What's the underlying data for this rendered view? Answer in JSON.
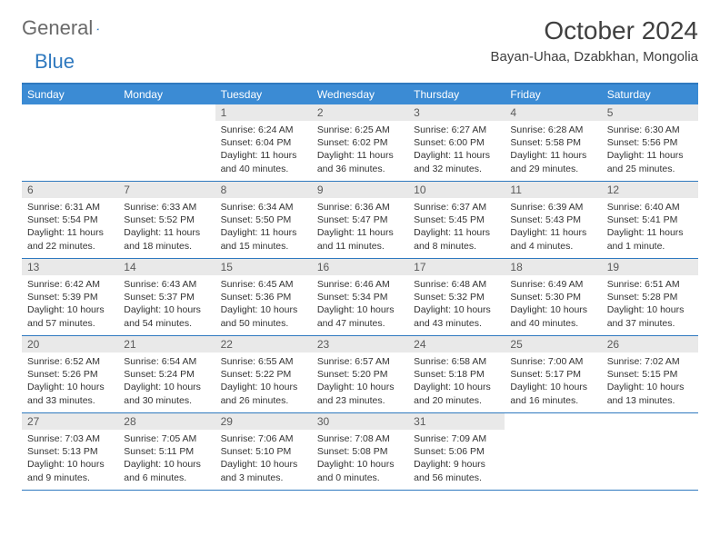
{
  "brand": {
    "word1": "General",
    "word2": "Blue",
    "accent_color": "#2f79bf"
  },
  "title": "October 2024",
  "location": "Bayan-Uhaa, Dzabkhan, Mongolia",
  "day_labels": [
    "Sunday",
    "Monday",
    "Tuesday",
    "Wednesday",
    "Thursday",
    "Friday",
    "Saturday"
  ],
  "colors": {
    "header_bg": "#3b8bd4",
    "header_text": "#ffffff",
    "daynum_bg": "#e9e9e9",
    "border": "#2f79bf",
    "text": "#333333"
  },
  "weeks": [
    [
      {
        "blank": true
      },
      {
        "blank": true
      },
      {
        "day": "1",
        "sunrise": "Sunrise: 6:24 AM",
        "sunset": "Sunset: 6:04 PM",
        "daylight": "Daylight: 11 hours and 40 minutes."
      },
      {
        "day": "2",
        "sunrise": "Sunrise: 6:25 AM",
        "sunset": "Sunset: 6:02 PM",
        "daylight": "Daylight: 11 hours and 36 minutes."
      },
      {
        "day": "3",
        "sunrise": "Sunrise: 6:27 AM",
        "sunset": "Sunset: 6:00 PM",
        "daylight": "Daylight: 11 hours and 32 minutes."
      },
      {
        "day": "4",
        "sunrise": "Sunrise: 6:28 AM",
        "sunset": "Sunset: 5:58 PM",
        "daylight": "Daylight: 11 hours and 29 minutes."
      },
      {
        "day": "5",
        "sunrise": "Sunrise: 6:30 AM",
        "sunset": "Sunset: 5:56 PM",
        "daylight": "Daylight: 11 hours and 25 minutes."
      }
    ],
    [
      {
        "day": "6",
        "sunrise": "Sunrise: 6:31 AM",
        "sunset": "Sunset: 5:54 PM",
        "daylight": "Daylight: 11 hours and 22 minutes."
      },
      {
        "day": "7",
        "sunrise": "Sunrise: 6:33 AM",
        "sunset": "Sunset: 5:52 PM",
        "daylight": "Daylight: 11 hours and 18 minutes."
      },
      {
        "day": "8",
        "sunrise": "Sunrise: 6:34 AM",
        "sunset": "Sunset: 5:50 PM",
        "daylight": "Daylight: 11 hours and 15 minutes."
      },
      {
        "day": "9",
        "sunrise": "Sunrise: 6:36 AM",
        "sunset": "Sunset: 5:47 PM",
        "daylight": "Daylight: 11 hours and 11 minutes."
      },
      {
        "day": "10",
        "sunrise": "Sunrise: 6:37 AM",
        "sunset": "Sunset: 5:45 PM",
        "daylight": "Daylight: 11 hours and 8 minutes."
      },
      {
        "day": "11",
        "sunrise": "Sunrise: 6:39 AM",
        "sunset": "Sunset: 5:43 PM",
        "daylight": "Daylight: 11 hours and 4 minutes."
      },
      {
        "day": "12",
        "sunrise": "Sunrise: 6:40 AM",
        "sunset": "Sunset: 5:41 PM",
        "daylight": "Daylight: 11 hours and 1 minute."
      }
    ],
    [
      {
        "day": "13",
        "sunrise": "Sunrise: 6:42 AM",
        "sunset": "Sunset: 5:39 PM",
        "daylight": "Daylight: 10 hours and 57 minutes."
      },
      {
        "day": "14",
        "sunrise": "Sunrise: 6:43 AM",
        "sunset": "Sunset: 5:37 PM",
        "daylight": "Daylight: 10 hours and 54 minutes."
      },
      {
        "day": "15",
        "sunrise": "Sunrise: 6:45 AM",
        "sunset": "Sunset: 5:36 PM",
        "daylight": "Daylight: 10 hours and 50 minutes."
      },
      {
        "day": "16",
        "sunrise": "Sunrise: 6:46 AM",
        "sunset": "Sunset: 5:34 PM",
        "daylight": "Daylight: 10 hours and 47 minutes."
      },
      {
        "day": "17",
        "sunrise": "Sunrise: 6:48 AM",
        "sunset": "Sunset: 5:32 PM",
        "daylight": "Daylight: 10 hours and 43 minutes."
      },
      {
        "day": "18",
        "sunrise": "Sunrise: 6:49 AM",
        "sunset": "Sunset: 5:30 PM",
        "daylight": "Daylight: 10 hours and 40 minutes."
      },
      {
        "day": "19",
        "sunrise": "Sunrise: 6:51 AM",
        "sunset": "Sunset: 5:28 PM",
        "daylight": "Daylight: 10 hours and 37 minutes."
      }
    ],
    [
      {
        "day": "20",
        "sunrise": "Sunrise: 6:52 AM",
        "sunset": "Sunset: 5:26 PM",
        "daylight": "Daylight: 10 hours and 33 minutes."
      },
      {
        "day": "21",
        "sunrise": "Sunrise: 6:54 AM",
        "sunset": "Sunset: 5:24 PM",
        "daylight": "Daylight: 10 hours and 30 minutes."
      },
      {
        "day": "22",
        "sunrise": "Sunrise: 6:55 AM",
        "sunset": "Sunset: 5:22 PM",
        "daylight": "Daylight: 10 hours and 26 minutes."
      },
      {
        "day": "23",
        "sunrise": "Sunrise: 6:57 AM",
        "sunset": "Sunset: 5:20 PM",
        "daylight": "Daylight: 10 hours and 23 minutes."
      },
      {
        "day": "24",
        "sunrise": "Sunrise: 6:58 AM",
        "sunset": "Sunset: 5:18 PM",
        "daylight": "Daylight: 10 hours and 20 minutes."
      },
      {
        "day": "25",
        "sunrise": "Sunrise: 7:00 AM",
        "sunset": "Sunset: 5:17 PM",
        "daylight": "Daylight: 10 hours and 16 minutes."
      },
      {
        "day": "26",
        "sunrise": "Sunrise: 7:02 AM",
        "sunset": "Sunset: 5:15 PM",
        "daylight": "Daylight: 10 hours and 13 minutes."
      }
    ],
    [
      {
        "day": "27",
        "sunrise": "Sunrise: 7:03 AM",
        "sunset": "Sunset: 5:13 PM",
        "daylight": "Daylight: 10 hours and 9 minutes."
      },
      {
        "day": "28",
        "sunrise": "Sunrise: 7:05 AM",
        "sunset": "Sunset: 5:11 PM",
        "daylight": "Daylight: 10 hours and 6 minutes."
      },
      {
        "day": "29",
        "sunrise": "Sunrise: 7:06 AM",
        "sunset": "Sunset: 5:10 PM",
        "daylight": "Daylight: 10 hours and 3 minutes."
      },
      {
        "day": "30",
        "sunrise": "Sunrise: 7:08 AM",
        "sunset": "Sunset: 5:08 PM",
        "daylight": "Daylight: 10 hours and 0 minutes."
      },
      {
        "day": "31",
        "sunrise": "Sunrise: 7:09 AM",
        "sunset": "Sunset: 5:06 PM",
        "daylight": "Daylight: 9 hours and 56 minutes."
      },
      {
        "blank": true
      },
      {
        "blank": true
      }
    ]
  ]
}
